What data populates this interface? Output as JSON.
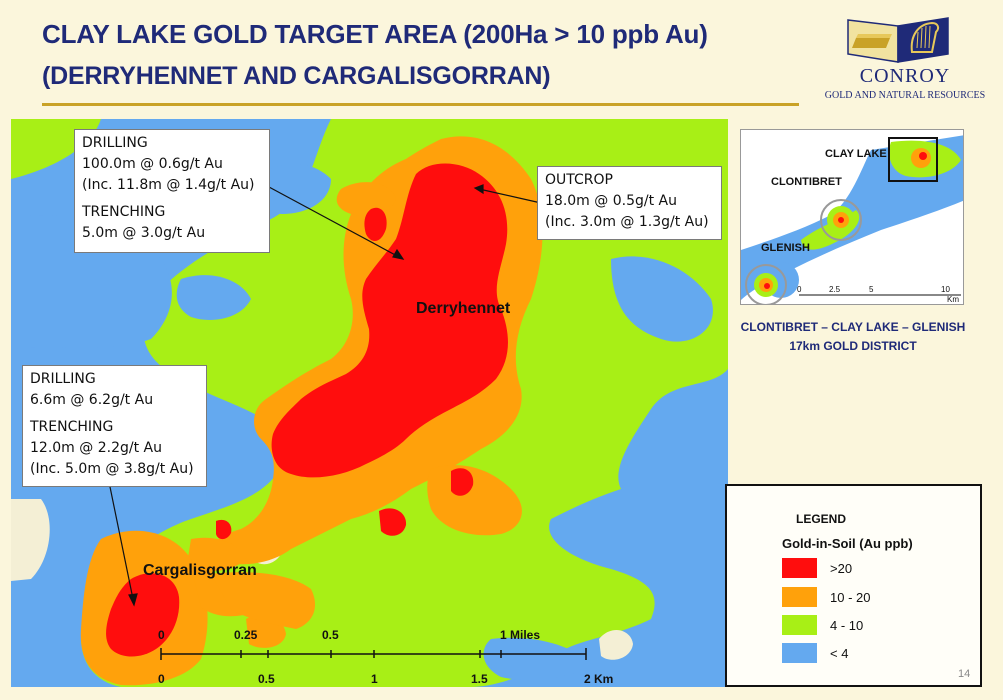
{
  "title": {
    "line1": "CLAY LAKE GOLD TARGET AREA (200Ha > 10 ppb Au)",
    "line2": "(DERRYHENNET AND CARGALISGORRAN)"
  },
  "logo": {
    "name": "CONROY",
    "subtitle": "GOLD AND NATURAL RESOURCES"
  },
  "colors": {
    "title": "#1f2a78",
    "rule": "#c9a227",
    "gt20": "#ff0d0d",
    "r10_20": "#ffa10b",
    "r4_10": "#a8ef16",
    "lt4": "#64a9ef"
  },
  "map": {
    "places": {
      "derryhennet": "Derryhennet",
      "cargalisgorran": "Cargalisgorran"
    },
    "callouts": {
      "north": {
        "lines": [
          "DRILLING",
          "100.0m @ 0.6g/t Au",
          "(Inc. 11.8m @ 1.4g/t Au)",
          "TRENCHING",
          "5.0m @ 3.0g/t Au"
        ]
      },
      "outcrop": {
        "lines": [
          "OUTCROP",
          "18.0m @ 0.5g/t Au",
          "(Inc. 3.0m @ 1.3g/t Au)"
        ]
      },
      "south": {
        "lines": [
          "DRILLING",
          "6.6m @ 6.2g/t Au",
          "TRENCHING",
          "12.0m @ 2.2g/t Au",
          "(Inc. 5.0m @ 3.8g/t Au)"
        ]
      }
    },
    "scale": {
      "miles": [
        "0",
        "0.25",
        "0.5",
        "1 Miles"
      ],
      "km": [
        "0",
        "0.5",
        "1",
        "1.5",
        "2 Km"
      ]
    }
  },
  "inset": {
    "labels": {
      "claylake": "CLAY LAKE",
      "clontibret": "CLONTIBRET",
      "glenish": "GLENISH"
    },
    "scale": [
      "0",
      "2.5",
      "5",
      "10",
      "Km"
    ],
    "caption1": "CLONTIBRET – CLAY LAKE – GLENISH",
    "caption2": "17km GOLD DISTRICT"
  },
  "legend": {
    "title": "LEGEND",
    "subtitle": "Gold-in-Soil (Au ppb)",
    "items": [
      {
        "label": ">20",
        "color": "#ff0d0d"
      },
      {
        "label": "10 - 20",
        "color": "#ffa10b"
      },
      {
        "label": "4 - 10",
        "color": "#a8ef16"
      },
      {
        "label": "< 4",
        "color": "#64a9ef"
      }
    ]
  },
  "page_number": "14"
}
